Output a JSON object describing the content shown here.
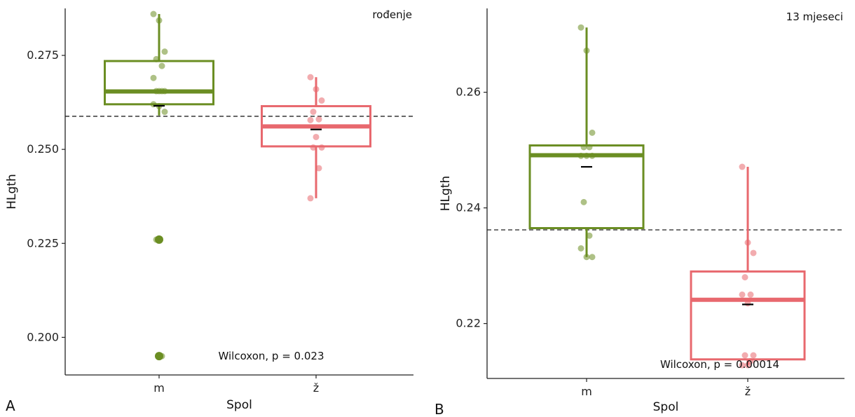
{
  "chart_data": [
    {
      "type": "boxplot",
      "panel_label": "A",
      "title": "rođenje",
      "xlabel": "Spol",
      "ylabel": "HLgth",
      "categories": [
        "m",
        "ž"
      ],
      "ylim": [
        0.19,
        0.2875
      ],
      "yticks": [
        0.2,
        0.225,
        0.25,
        0.275
      ],
      "ytick_labels": [
        "0.200",
        "0.225",
        "0.250",
        "0.275"
      ],
      "reference_line": 0.2588,
      "annotation": "Wilcoxon, p = 0.023",
      "series": [
        {
          "category": "m",
          "color": "#6b8e23",
          "q1": 0.262,
          "median": 0.2654,
          "q3": 0.2735,
          "whisker_low": 0.259,
          "whisker_high": 0.286,
          "mean": 0.2616,
          "outliers": [
            0.226,
            0.195
          ],
          "points": [
            0.286,
            0.2843,
            0.276,
            0.274,
            0.2722,
            0.269,
            0.2655,
            0.2655,
            0.2655,
            0.2655,
            0.262,
            0.2615,
            0.26,
            0.226,
            0.195
          ]
        },
        {
          "category": "ž",
          "color": "#e8686e",
          "q1": 0.2508,
          "median": 0.2561,
          "q3": 0.2615,
          "whisker_low": 0.237,
          "whisker_high": 0.2692,
          "mean": 0.2553,
          "outliers": [],
          "points": [
            0.2692,
            0.266,
            0.263,
            0.26,
            0.258,
            0.2578,
            0.2533,
            0.2505,
            0.2505,
            0.245,
            0.237
          ]
        }
      ]
    },
    {
      "type": "boxplot",
      "panel_label": "B",
      "title": "13 mjeseci",
      "xlabel": "Spol",
      "ylabel": "HLgth",
      "categories": [
        "m",
        "ž"
      ],
      "ylim": [
        0.2105,
        0.2745
      ],
      "yticks": [
        0.22,
        0.24,
        0.26
      ],
      "ytick_labels": [
        "0.22",
        "0.24",
        "0.26"
      ],
      "reference_line": 0.2362,
      "annotation": "Wilcoxon, p = 0.00014",
      "series": [
        {
          "category": "m",
          "color": "#6b8e23",
          "q1": 0.2365,
          "median": 0.2491,
          "q3": 0.2508,
          "whisker_low": 0.2315,
          "whisker_high": 0.2712,
          "mean": 0.2471,
          "outliers": [],
          "points": [
            0.2712,
            0.2672,
            0.253,
            0.2505,
            0.2505,
            0.249,
            0.249,
            0.249,
            0.241,
            0.2352,
            0.233,
            0.2315,
            0.2315
          ]
        },
        {
          "category": "ž",
          "color": "#e8686e",
          "q1": 0.2138,
          "median": 0.2241,
          "q3": 0.229,
          "whisker_low": 0.2128,
          "whisker_high": 0.2471,
          "mean": 0.2233,
          "outliers": [],
          "points": [
            0.2471,
            0.234,
            0.2322,
            0.228,
            0.225,
            0.225,
            0.2235,
            0.2145,
            0.2145,
            0.2135,
            0.2128,
            0.2128
          ]
        }
      ]
    }
  ]
}
